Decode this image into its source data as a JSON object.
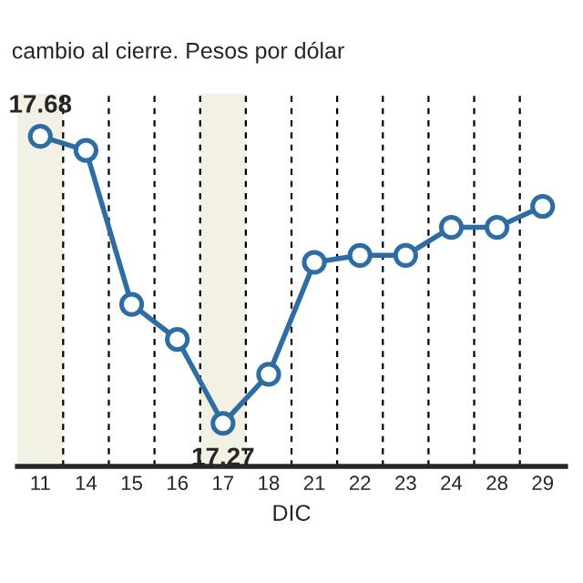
{
  "chart_data": {
    "type": "line",
    "title": "cambio al cierre. Pesos por dólar",
    "xlabel": "DIC",
    "categories": [
      "11",
      "14",
      "15",
      "16",
      "17",
      "18",
      "21",
      "22",
      "23",
      "24",
      "28",
      "29"
    ],
    "series": [
      {
        "color": "#2e6da4",
        "values": [
          17.68,
          17.66,
          17.44,
          17.39,
          17.27,
          17.34,
          17.5,
          17.51,
          17.51,
          17.55,
          17.55,
          17.58
        ],
        "value_labels": [
          "17.68",
          null,
          null,
          null,
          "17.27",
          null,
          null,
          null,
          null,
          null,
          null,
          null
        ]
      }
    ],
    "bands": [
      {
        "axis": "x",
        "from": "11",
        "to": "11",
        "color": "#f3f1e4"
      },
      {
        "axis": "x",
        "from": "17",
        "to": "17",
        "color": "#f3f1e4"
      }
    ],
    "marker": "circle",
    "line_style": "solid",
    "grid": "x",
    "legend": false,
    "tick_labels": "x"
  }
}
